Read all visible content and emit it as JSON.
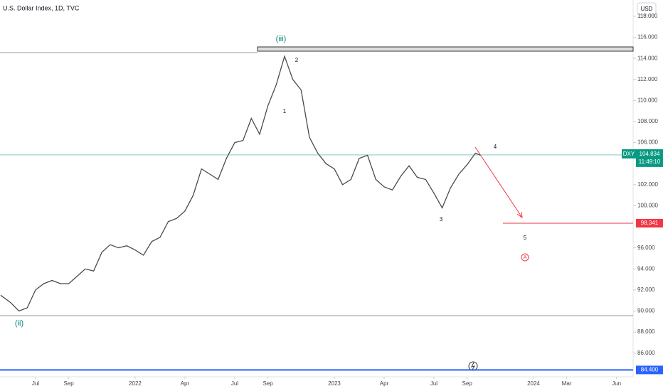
{
  "chart_data": {
    "type": "line",
    "title": "U.S. Dollar Index, 1D, TVC",
    "currency": "USD",
    "symbol": "DXY",
    "countdown": "11:49:10",
    "color": "#4a4a4a",
    "x": [
      3.9,
      4.5,
      5.0,
      5.5,
      6.0,
      6.5,
      7.0,
      7.5,
      8.0,
      8.5,
      9.0,
      9.5,
      10.0,
      10.5,
      11.0,
      11.5,
      12.0,
      12.5,
      13.0,
      13.5,
      14.0,
      14.5,
      15.0,
      15.5,
      16.0,
      16.5,
      17.0,
      17.5,
      18.0,
      18.5,
      19.0,
      19.5,
      20.0,
      20.5,
      21.0,
      21.5,
      22.0,
      22.5,
      23.0,
      23.5,
      24.0,
      24.5,
      25.0,
      25.5,
      26.0,
      26.5,
      27.0,
      27.5,
      28.0,
      28.5,
      29.0,
      29.5,
      30.0,
      30.5,
      31.0,
      31.5,
      32.0,
      32.5,
      32.8
    ],
    "values": [
      91.5,
      90.8,
      90.0,
      90.3,
      92.0,
      92.6,
      92.9,
      92.6,
      92.6,
      93.3,
      94.0,
      93.8,
      95.6,
      96.3,
      96.0,
      96.2,
      95.8,
      95.3,
      96.6,
      97.0,
      98.5,
      98.8,
      99.5,
      101.0,
      103.5,
      103.0,
      102.5,
      104.5,
      106.0,
      106.2,
      108.3,
      106.8,
      109.5,
      111.5,
      114.2,
      112.0,
      111.0,
      106.5,
      105.0,
      104.0,
      103.5,
      102.0,
      102.5,
      104.5,
      104.8,
      102.5,
      101.8,
      101.5,
      102.8,
      103.8,
      102.7,
      102.5,
      101.2,
      99.8,
      101.7,
      103.0,
      103.9,
      105.0,
      104.8
    ],
    "xlim": [
      3.86,
      42.0
    ],
    "xticks": [
      {
        "value": 6,
        "label": "Jul"
      },
      {
        "value": 8,
        "label": "Sep"
      },
      {
        "value": 12,
        "label": "2022"
      },
      {
        "value": 15,
        "label": "Apr"
      },
      {
        "value": 18,
        "label": "Jul"
      },
      {
        "value": 20,
        "label": "Sep"
      },
      {
        "value": 24,
        "label": "2023"
      },
      {
        "value": 27,
        "label": "Apr"
      },
      {
        "value": 30,
        "label": "Jul"
      },
      {
        "value": 32,
        "label": "Sep"
      },
      {
        "value": 36,
        "label": "2024"
      },
      {
        "value": 38,
        "label": "Mar"
      },
      {
        "value": 41,
        "label": "Jun"
      }
    ],
    "ylim": [
      83.75,
      119.55
    ],
    "yticks": [
      {
        "value": 86,
        "label": "86.000"
      },
      {
        "value": 88,
        "label": "88.000"
      },
      {
        "value": 90,
        "label": "90.000"
      },
      {
        "value": 92,
        "label": "92.000"
      },
      {
        "value": 94,
        "label": "94.000"
      },
      {
        "value": 96,
        "label": "96.000"
      },
      {
        "value": 100,
        "label": "100.000"
      },
      {
        "value": 102,
        "label": "102.000"
      },
      {
        "value": 106,
        "label": "106.000"
      },
      {
        "value": 108,
        "label": "108.000"
      },
      {
        "value": 110,
        "label": "110.000"
      },
      {
        "value": 112,
        "label": "112.000"
      },
      {
        "value": 114,
        "label": "114.000"
      },
      {
        "value": 116,
        "label": "116.000"
      },
      {
        "value": 118,
        "label": "118.000"
      }
    ],
    "last_price": {
      "value": 104.834,
      "label": "104.834",
      "color": "#089981"
    },
    "levels": [
      {
        "value": 98.341,
        "label": "98.341",
        "color": "#f23645"
      },
      {
        "value": 84.4,
        "label": "84.400",
        "color": "#2962ff"
      }
    ],
    "annotations": [
      "(iii)",
      "(ii)",
      "1",
      "2",
      "3",
      "4",
      "5",
      "A"
    ]
  }
}
